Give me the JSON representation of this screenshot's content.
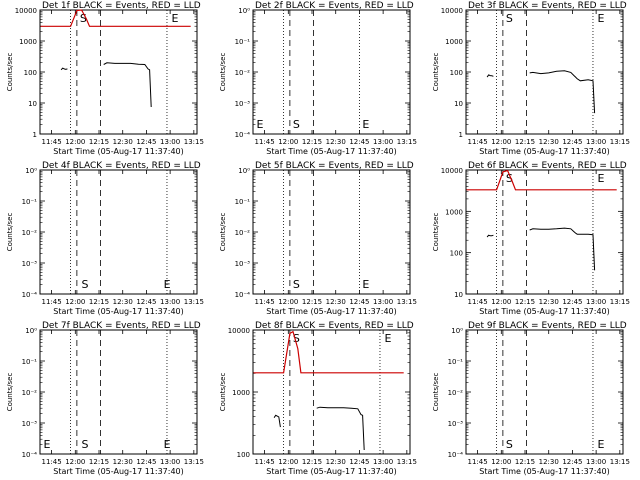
{
  "figure": {
    "background": "#ffffff",
    "event_color": "#000000",
    "lld_color": "#cc0000"
  },
  "chart_data": [
    {
      "type": "line",
      "title": "Det 1f BLACK = Events, RED = LLD",
      "xlabel": "Start Time (05-Aug-17 11:37:40)",
      "ylabel": "Counts/sec",
      "x_ticks": [
        "11:45",
        "12:00",
        "12:15",
        "12:30",
        "12:45",
        "13:00",
        "13:15"
      ],
      "y_ticks": [
        "1",
        "10",
        "100",
        "1000",
        "10000"
      ],
      "ylim": [
        1,
        14000
      ],
      "markers": [
        {
          "label": "S",
          "time": "12:01"
        },
        {
          "label": "E",
          "time": "12:59"
        }
      ],
      "dotted_lines": [
        "11:57",
        "12:58"
      ],
      "dashed_lines": [
        "12:01",
        "12:16"
      ],
      "series": [
        {
          "color": "black",
          "points": [
            [
              "11:51",
              140
            ],
            [
              "11:52",
              160
            ],
            [
              "11:53",
              150
            ],
            [
              "11:54",
              145
            ],
            [
              "11:55",
              150
            ]
          ]
        },
        {
          "color": "black",
          "points": [
            [
              "12:18",
              210
            ],
            [
              "12:20",
              240
            ],
            [
              "12:25",
              230
            ],
            [
              "12:30",
              230
            ],
            [
              "12:35",
              230
            ],
            [
              "12:40",
              215
            ],
            [
              "12:44",
              210
            ],
            [
              "12:46",
              150
            ],
            [
              "12:47",
              140
            ],
            [
              "12:48",
              8
            ]
          ]
        },
        {
          "color": "red",
          "points": [
            [
              "11:38",
              4000
            ],
            [
              "11:57",
              4000
            ],
            [
              "12:01",
              13500
            ],
            [
              "12:04",
              14000
            ],
            [
              "12:07",
              7000
            ],
            [
              "12:09",
              4000
            ],
            [
              "13:13",
              4000
            ]
          ]
        }
      ]
    },
    {
      "type": "line",
      "title": "Det 2f BLACK = Events, RED = LLD",
      "xlabel": "Start Time (05-Aug-17 11:37:40)",
      "ylabel": "Counts/sec",
      "x_ticks": [
        "11:45",
        "12:00",
        "12:15",
        "12:30",
        "12:45",
        "13:00",
        "13:15"
      ],
      "y_ticks": [
        "10⁻⁴",
        "10⁻³",
        "10⁻²",
        "10⁻¹",
        "10⁰"
      ],
      "ylim": [
        1,
        10
      ],
      "markers": [
        {
          "label": "S",
          "time": "12:01"
        },
        {
          "label": "E",
          "time": "12:45"
        },
        {
          "label": "E",
          "time": "11:38"
        }
      ],
      "dotted_lines": [
        "11:57",
        "12:45"
      ],
      "dashed_lines": [
        "12:01",
        "12:16"
      ],
      "series": []
    },
    {
      "type": "line",
      "title": "Det 3f BLACK = Events, RED = LLD",
      "xlabel": "Start Time (05-Aug-17 11:37:40)",
      "ylabel": "Counts/sec",
      "x_ticks": [
        "11:45",
        "12:00",
        "12:15",
        "12:30",
        "12:45",
        "13:00",
        "13:15"
      ],
      "y_ticks": [
        "1",
        "10",
        "100",
        "1000",
        "10000"
      ],
      "ylim": [
        1,
        14000
      ],
      "markers": [
        {
          "label": "S",
          "time": "12:01"
        },
        {
          "label": "E",
          "time": "12:59"
        }
      ],
      "dotted_lines": [
        "11:57",
        "12:58"
      ],
      "dashed_lines": [
        "12:01",
        "12:16"
      ],
      "series": [
        {
          "color": "black",
          "points": [
            [
              "11:51",
              80
            ],
            [
              "11:52",
              95
            ],
            [
              "11:53",
              90
            ],
            [
              "11:54",
              88
            ],
            [
              "11:55",
              85
            ]
          ]
        },
        {
          "color": "black",
          "points": [
            [
              "12:18",
              110
            ],
            [
              "12:20",
              115
            ],
            [
              "12:25",
              105
            ],
            [
              "12:30",
              110
            ],
            [
              "12:35",
              125
            ],
            [
              "12:40",
              130
            ],
            [
              "12:44",
              115
            ],
            [
              "12:46",
              90
            ],
            [
              "12:47",
              80
            ],
            [
              "12:48",
              70
            ],
            [
              "12:50",
              60
            ],
            [
              "12:55",
              65
            ],
            [
              "12:58",
              60
            ],
            [
              "12:59",
              5
            ]
          ]
        }
      ]
    },
    {
      "type": "line",
      "title": "Det 4f BLACK = Events, RED = LLD",
      "xlabel": "Start Time (05-Aug-17 11:37:40)",
      "ylabel": "Counts/sec",
      "x_ticks": [
        "11:45",
        "12:00",
        "12:15",
        "12:30",
        "12:45",
        "13:00",
        "13:15"
      ],
      "y_ticks": [
        "10⁻⁴",
        "10⁻³",
        "10⁻²",
        "10⁻¹",
        "10⁰"
      ],
      "ylim": [
        1,
        10
      ],
      "markers": [
        {
          "label": "S",
          "time": "12:02"
        },
        {
          "label": "E",
          "time": "12:54"
        }
      ],
      "dotted_lines": [
        "11:57",
        "12:58"
      ],
      "dashed_lines": [
        "12:01",
        "12:16"
      ],
      "series": []
    },
    {
      "type": "line",
      "title": "Det 5f BLACK = Events, RED = LLD",
      "xlabel": "Start Time (05-Aug-17 11:37:40)",
      "ylabel": "Counts/sec",
      "x_ticks": [
        "11:45",
        "12:00",
        "12:15",
        "12:30",
        "12:45",
        "13:00",
        "13:15"
      ],
      "y_ticks": [
        "10⁻⁴",
        "10⁻³",
        "10⁻²",
        "10⁻¹",
        "10⁰"
      ],
      "ylim": [
        1,
        10
      ],
      "markers": [
        {
          "label": "S",
          "time": "12:01"
        },
        {
          "label": "E",
          "time": "12:45"
        }
      ],
      "dotted_lines": [
        "11:57",
        "12:45"
      ],
      "dashed_lines": [
        "12:01",
        "12:16"
      ],
      "series": []
    },
    {
      "type": "line",
      "title": "Det 6f BLACK = Events, RED = LLD",
      "xlabel": "Start Time (05-Aug-17 11:37:40)",
      "ylabel": "Counts/sec",
      "x_ticks": [
        "11:45",
        "12:00",
        "12:15",
        "12:30",
        "12:45",
        "13:00",
        "13:15"
      ],
      "y_ticks": [
        "10",
        "100",
        "1000",
        "10000"
      ],
      "ylim": [
        10,
        14000
      ],
      "markers": [
        {
          "label": "S",
          "time": "12:01"
        },
        {
          "label": "E",
          "time": "12:59"
        }
      ],
      "dotted_lines": [
        "11:57",
        "12:58"
      ],
      "dashed_lines": [
        "12:01",
        "12:16"
      ],
      "series": [
        {
          "color": "black",
          "points": [
            [
              "11:51",
              280
            ],
            [
              "11:52",
              310
            ],
            [
              "11:53",
              300
            ],
            [
              "11:54",
              300
            ],
            [
              "11:55",
              310
            ]
          ]
        },
        {
          "color": "black",
          "points": [
            [
              "12:18",
              420
            ],
            [
              "12:20",
              450
            ],
            [
              "12:25",
              440
            ],
            [
              "12:30",
              440
            ],
            [
              "12:35",
              450
            ],
            [
              "12:40",
              470
            ],
            [
              "12:44",
              450
            ],
            [
              "12:46",
              380
            ],
            [
              "12:47",
              350
            ],
            [
              "12:48",
              330
            ],
            [
              "12:55",
              330
            ],
            [
              "12:58",
              320
            ],
            [
              "12:59",
              40
            ]
          ]
        },
        {
          "color": "red",
          "points": [
            [
              "11:38",
              4400
            ],
            [
              "11:57",
              4400
            ],
            [
              "12:01",
              12500
            ],
            [
              "12:04",
              13500
            ],
            [
              "12:07",
              7000
            ],
            [
              "12:09",
              4400
            ],
            [
              "13:13",
              4400
            ]
          ]
        }
      ]
    },
    {
      "type": "line",
      "title": "Det 7f BLACK = Events, RED = LLD",
      "xlabel": "Start Time (05-Aug-17 11:37:40)",
      "ylabel": "Counts/sec",
      "x_ticks": [
        "11:45",
        "12:00",
        "12:15",
        "12:30",
        "12:45",
        "13:00",
        "13:15"
      ],
      "y_ticks": [
        "10⁻⁴",
        "10⁻³",
        "10⁻²",
        "10⁻¹",
        "10⁰"
      ],
      "ylim": [
        1,
        10
      ],
      "markers": [
        {
          "label": "S",
          "time": "12:02"
        },
        {
          "label": "E",
          "time": "12:54"
        },
        {
          "label": "E",
          "time": "11:38"
        }
      ],
      "dotted_lines": [
        "11:57",
        "12:58"
      ],
      "dashed_lines": [
        "12:01",
        "12:16"
      ],
      "series": []
    },
    {
      "type": "line",
      "title": "Det 8f BLACK = Events, RED = LLD",
      "xlabel": "Start Time (05-Aug-17 11:37:40)",
      "ylabel": "Counts/sec",
      "x_ticks": [
        "11:45",
        "12:00",
        "12:15",
        "12:30",
        "12:45",
        "13:00",
        "13:15"
      ],
      "y_ticks": [
        "100",
        "1000",
        "10000"
      ],
      "ylim": [
        50,
        14000
      ],
      "markers": [
        {
          "label": "S",
          "time": "12:01"
        },
        {
          "label": "E",
          "time": "12:59"
        }
      ],
      "dotted_lines": [
        "11:57",
        "12:58"
      ],
      "dashed_lines": [
        "12:01",
        "12:16"
      ],
      "series": [
        {
          "color": "black",
          "points": [
            [
              "11:51",
              260
            ],
            [
              "11:52",
              290
            ],
            [
              "11:53",
              280
            ],
            [
              "11:54",
              270
            ],
            [
              "11:55",
              170
            ]
          ]
        },
        {
          "color": "black",
          "points": [
            [
              "12:18",
              400
            ],
            [
              "12:20",
              420
            ],
            [
              "12:25",
              410
            ],
            [
              "12:30",
              410
            ],
            [
              "12:35",
              410
            ],
            [
              "12:40",
              400
            ],
            [
              "12:44",
              390
            ],
            [
              "12:46",
              300
            ],
            [
              "12:47",
              290
            ],
            [
              "12:48",
              60
            ]
          ]
        },
        {
          "color": "red",
          "points": [
            [
              "11:38",
              2000
            ],
            [
              "11:57",
              2000
            ],
            [
              "12:01",
              12000
            ],
            [
              "12:03",
              13000
            ],
            [
              "12:06",
              6000
            ],
            [
              "12:08",
              2000
            ],
            [
              "13:13",
              2000
            ]
          ]
        }
      ]
    },
    {
      "type": "line",
      "title": "Det 9f BLACK = Events, RED = LLD",
      "xlabel": "Start Time (05-Aug-17 11:37:40)",
      "ylabel": "Counts/sec",
      "x_ticks": [
        "11:45",
        "12:00",
        "12:15",
        "12:30",
        "12:45",
        "13:00",
        "13:15"
      ],
      "y_ticks": [
        "10⁻⁴",
        "10⁻³",
        "10⁻²",
        "10⁻¹",
        "10⁰"
      ],
      "ylim": [
        1,
        10
      ],
      "markers": [
        {
          "label": "S",
          "time": "12:01"
        },
        {
          "label": "E",
          "time": "12:59"
        }
      ],
      "dotted_lines": [
        "11:57",
        "12:58"
      ],
      "dashed_lines": [
        "12:01",
        "12:16"
      ],
      "series": []
    }
  ]
}
